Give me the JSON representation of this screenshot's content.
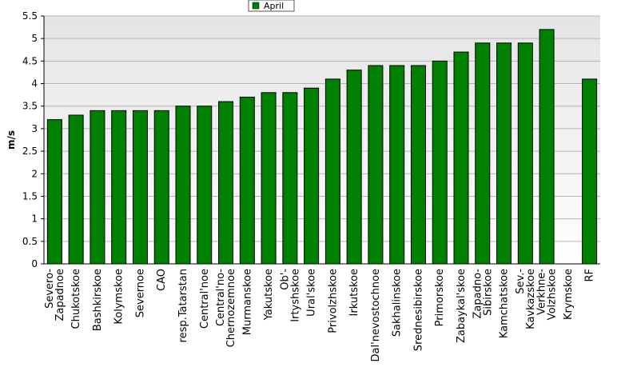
{
  "chart_data": {
    "type": "bar",
    "title": "",
    "xlabel": "",
    "ylabel": "m/s",
    "ylim": [
      0,
      5.5
    ],
    "yticks": [
      "0",
      "0.5",
      "1",
      "1.5",
      "2",
      "2.5",
      "3",
      "3.5",
      "4",
      "4.5",
      "5",
      "5.5"
    ],
    "grid": true,
    "legend": {
      "position": "top-center",
      "entries": [
        "April"
      ]
    },
    "bar_color": "#008000",
    "plot_background": "gradient white-to-grey",
    "categories": [
      "Severo-Zapadnoe",
      "Chukotskoe",
      "Bashkirskoe",
      "Kolymskoe",
      "Severnoe",
      "CAO",
      "resp.Tatarstan",
      "Central'noe",
      "Central'no-Chernozemnoe",
      "Murmanskoe",
      "Yakutskoe",
      "Ob'-Irtyshskoe",
      "Ural'skoe",
      "Privolzhskoe",
      "Irkutskoe",
      "Dal'nevostochnoe",
      "Sakhalinskoe",
      "Srednesibirskoe",
      "Primorskoe",
      "Zabaykal'skoe",
      "Zapadno-Sibirskoe",
      "Kamchatskoe",
      "Sev.-Kavkazskoe",
      "Verkhne-Volzhskoe",
      "Krymskoe",
      "RF"
    ],
    "tick_labels": [
      [
        "Severo-",
        "Zapadnoe"
      ],
      [
        "Chukotskoe"
      ],
      [
        "Bashkirskoe"
      ],
      [
        "Kolymskoe"
      ],
      [
        "Severnoe"
      ],
      [
        "CAO"
      ],
      [
        "resp.Tatarstan"
      ],
      [
        "Central'noe"
      ],
      [
        "Central'no-",
        "Chernozemnoe"
      ],
      [
        "Murmanskoe"
      ],
      [
        "Yakutskoe"
      ],
      [
        "Ob'-",
        "Irtyshskoe"
      ],
      [
        "Ural'skoe"
      ],
      [
        "Privolzhskoe"
      ],
      [
        "Irkutskoe"
      ],
      [
        "Dal'nevostochnoe"
      ],
      [
        "Sakhalinskoe"
      ],
      [
        "Srednesibirskoe"
      ],
      [
        "Primorskoe"
      ],
      [
        "Zabaykal'skoe"
      ],
      [
        "Zapadno-",
        "Sibirskoe"
      ],
      [
        "Kamchatskoe"
      ],
      [
        "Sev.-",
        "Kavkazskoe"
      ],
      [
        "Verkhne-",
        "Volzhskoe"
      ],
      [
        "Krymskoe"
      ],
      [
        "RF"
      ]
    ],
    "series": [
      {
        "name": "April",
        "values": [
          3.2,
          3.3,
          3.4,
          3.4,
          3.4,
          3.4,
          3.5,
          3.5,
          3.6,
          3.7,
          3.8,
          3.8,
          3.9,
          4.1,
          4.3,
          4.4,
          4.4,
          4.4,
          4.5,
          4.7,
          4.9,
          4.9,
          4.9,
          5.2,
          null,
          4.1
        ]
      }
    ]
  }
}
